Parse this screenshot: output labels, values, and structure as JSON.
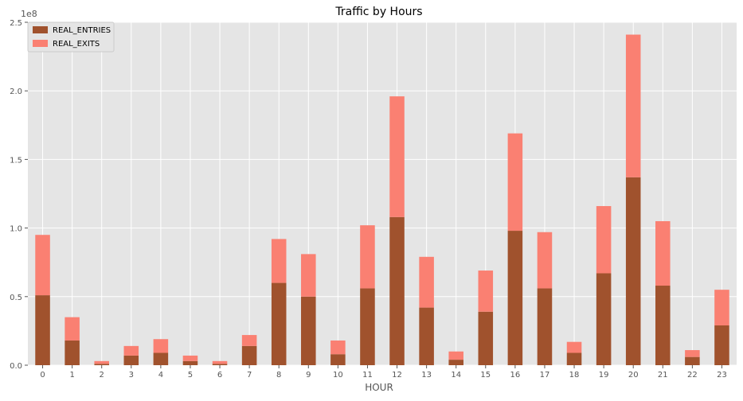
{
  "chart_data": {
    "type": "bar",
    "stacked": true,
    "title": "Traffic by Hours",
    "xlabel": "HOUR",
    "ylabel": "",
    "y_multiplier_label": "1e8",
    "ylim": [
      0,
      2.5
    ],
    "yticks": [
      0.0,
      0.5,
      1.0,
      1.5,
      2.0,
      2.5
    ],
    "ytick_labels": [
      "0.0",
      "0.5",
      "1.0",
      "1.5",
      "2.0",
      "2.5"
    ],
    "grid": true,
    "legend_position": "top-left",
    "categories": [
      "0",
      "1",
      "2",
      "3",
      "4",
      "5",
      "6",
      "7",
      "8",
      "9",
      "10",
      "11",
      "12",
      "13",
      "14",
      "15",
      "16",
      "17",
      "18",
      "19",
      "20",
      "21",
      "22",
      "23"
    ],
    "series": [
      {
        "name": "REAL_ENTRIES",
        "color": "#a0522d",
        "values": [
          0.51,
          0.18,
          0.01,
          0.07,
          0.09,
          0.03,
          0.01,
          0.14,
          0.6,
          0.5,
          0.08,
          0.56,
          1.08,
          0.42,
          0.04,
          0.39,
          0.98,
          0.56,
          0.09,
          0.67,
          1.37,
          0.58,
          0.06,
          0.29
        ]
      },
      {
        "name": "REAL_EXITS",
        "color": "#fa8072",
        "values": [
          0.44,
          0.17,
          0.02,
          0.07,
          0.1,
          0.04,
          0.02,
          0.08,
          0.32,
          0.31,
          0.1,
          0.46,
          0.88,
          0.37,
          0.06,
          0.3,
          0.71,
          0.41,
          0.08,
          0.49,
          1.04,
          0.47,
          0.05,
          0.26
        ]
      }
    ]
  }
}
